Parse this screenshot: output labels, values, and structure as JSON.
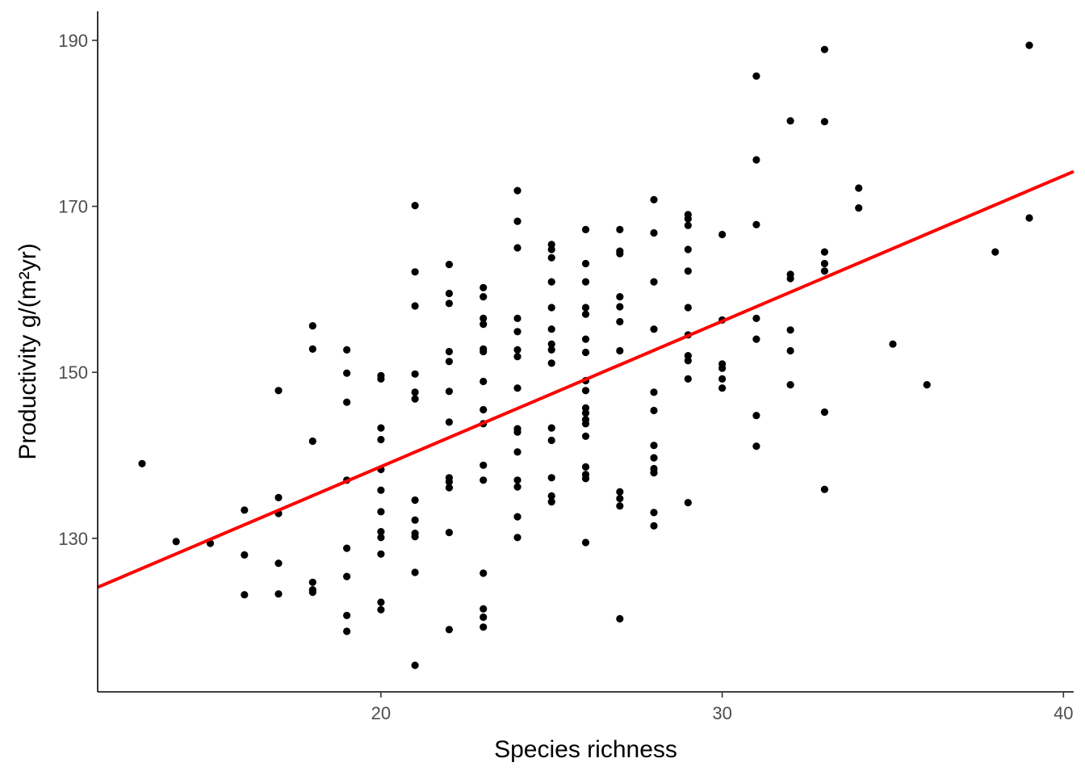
{
  "chart_data": {
    "type": "scatter",
    "title": "",
    "xlabel": "Species richness",
    "ylabel": "Productivity g/(m²yr)",
    "xlim": [
      11.7,
      40.3
    ],
    "ylim": [
      111.5,
      193.5
    ],
    "x_ticks": [
      20,
      30,
      40
    ],
    "y_ticks": [
      130,
      150,
      170,
      190
    ],
    "grid": false,
    "legend": "none",
    "point_color": "#000000",
    "fit_line": {
      "type": "linear",
      "color": "#ff0000",
      "x": [
        11.7,
        40.3
      ],
      "y": [
        124.1,
        174.2
      ]
    },
    "series": [
      {
        "points": [
          [
            13,
            139.0
          ],
          [
            14,
            129.6
          ],
          [
            15,
            129.4
          ],
          [
            16,
            133.4
          ],
          [
            16,
            128.0
          ],
          [
            16,
            123.2
          ],
          [
            17,
            147.8
          ],
          [
            17,
            134.9
          ],
          [
            17,
            133.0
          ],
          [
            17,
            127.0
          ],
          [
            17,
            123.3
          ],
          [
            18,
            155.6
          ],
          [
            18,
            152.8
          ],
          [
            18,
            141.7
          ],
          [
            18,
            124.7
          ],
          [
            18,
            123.8
          ],
          [
            18,
            123.5
          ],
          [
            19,
            152.7
          ],
          [
            19,
            149.9
          ],
          [
            19,
            146.4
          ],
          [
            19,
            137.0
          ],
          [
            19,
            128.8
          ],
          [
            19,
            125.4
          ],
          [
            19,
            120.7
          ],
          [
            19,
            118.8
          ],
          [
            20,
            149.6
          ],
          [
            20,
            149.2
          ],
          [
            20,
            143.3
          ],
          [
            20,
            141.9
          ],
          [
            20,
            138.3
          ],
          [
            20,
            135.8
          ],
          [
            20,
            133.2
          ],
          [
            20,
            130.8
          ],
          [
            20,
            130.1
          ],
          [
            20,
            128.1
          ],
          [
            20,
            122.3
          ],
          [
            20,
            121.4
          ],
          [
            21,
            170.1
          ],
          [
            21,
            162.1
          ],
          [
            21,
            158.0
          ],
          [
            21,
            149.8
          ],
          [
            21,
            147.6
          ],
          [
            21,
            146.8
          ],
          [
            21,
            134.6
          ],
          [
            21,
            132.2
          ],
          [
            21,
            130.6
          ],
          [
            21,
            130.2
          ],
          [
            21,
            125.9
          ],
          [
            21,
            114.7
          ],
          [
            22,
            163.0
          ],
          [
            22,
            159.5
          ],
          [
            22,
            158.3
          ],
          [
            22,
            152.5
          ],
          [
            22,
            151.3
          ],
          [
            22,
            147.7
          ],
          [
            22,
            144.0
          ],
          [
            22,
            137.3
          ],
          [
            22,
            136.8
          ],
          [
            22,
            136.1
          ],
          [
            22,
            130.7
          ],
          [
            22,
            119.0
          ],
          [
            23,
            160.2
          ],
          [
            23,
            159.1
          ],
          [
            23,
            156.5
          ],
          [
            23,
            155.8
          ],
          [
            23,
            152.8
          ],
          [
            23,
            152.5
          ],
          [
            23,
            148.9
          ],
          [
            23,
            145.5
          ],
          [
            23,
            143.8
          ],
          [
            23,
            138.8
          ],
          [
            23,
            137.0
          ],
          [
            23,
            125.8
          ],
          [
            23,
            121.5
          ],
          [
            23,
            120.5
          ],
          [
            23,
            119.3
          ],
          [
            24,
            171.9
          ],
          [
            24,
            168.2
          ],
          [
            24,
            165.0
          ],
          [
            24,
            156.5
          ],
          [
            24,
            154.9
          ],
          [
            24,
            152.7
          ],
          [
            24,
            151.9
          ],
          [
            24,
            148.1
          ],
          [
            24,
            143.2
          ],
          [
            24,
            142.8
          ],
          [
            24,
            140.4
          ],
          [
            24,
            137.0
          ],
          [
            24,
            136.2
          ],
          [
            24,
            132.6
          ],
          [
            24,
            130.1
          ],
          [
            25,
            165.4
          ],
          [
            25,
            164.8
          ],
          [
            25,
            163.8
          ],
          [
            25,
            160.9
          ],
          [
            25,
            157.8
          ],
          [
            25,
            155.2
          ],
          [
            25,
            153.4
          ],
          [
            25,
            152.7
          ],
          [
            25,
            151.1
          ],
          [
            25,
            143.3
          ],
          [
            25,
            141.8
          ],
          [
            25,
            137.3
          ],
          [
            25,
            135.1
          ],
          [
            25,
            134.4
          ],
          [
            26,
            167.2
          ],
          [
            26,
            163.1
          ],
          [
            26,
            160.9
          ],
          [
            26,
            157.8
          ],
          [
            26,
            157.0
          ],
          [
            26,
            154.0
          ],
          [
            26,
            152.4
          ],
          [
            26,
            149.0
          ],
          [
            26,
            147.8
          ],
          [
            26,
            145.7
          ],
          [
            26,
            145.1
          ],
          [
            26,
            144.3
          ],
          [
            26,
            143.8
          ],
          [
            26,
            142.3
          ],
          [
            26,
            138.6
          ],
          [
            26,
            137.7
          ],
          [
            26,
            137.2
          ],
          [
            26,
            129.5
          ],
          [
            27,
            167.2
          ],
          [
            27,
            164.6
          ],
          [
            27,
            164.3
          ],
          [
            27,
            159.1
          ],
          [
            27,
            157.9
          ],
          [
            27,
            156.1
          ],
          [
            27,
            152.6
          ],
          [
            27,
            135.6
          ],
          [
            27,
            134.8
          ],
          [
            27,
            133.9
          ],
          [
            27,
            120.3
          ],
          [
            28,
            170.8
          ],
          [
            28,
            166.8
          ],
          [
            28,
            160.9
          ],
          [
            28,
            155.2
          ],
          [
            28,
            147.6
          ],
          [
            28,
            145.4
          ],
          [
            28,
            141.2
          ],
          [
            28,
            139.7
          ],
          [
            28,
            138.4
          ],
          [
            28,
            137.9
          ],
          [
            28,
            133.1
          ],
          [
            28,
            131.5
          ],
          [
            29,
            169.0
          ],
          [
            29,
            168.5
          ],
          [
            29,
            167.7
          ],
          [
            29,
            164.8
          ],
          [
            29,
            162.2
          ],
          [
            29,
            157.8
          ],
          [
            29,
            154.5
          ],
          [
            29,
            152.0
          ],
          [
            29,
            151.4
          ],
          [
            29,
            149.2
          ],
          [
            29,
            134.3
          ],
          [
            30,
            166.6
          ],
          [
            30,
            156.3
          ],
          [
            30,
            151.0
          ],
          [
            30,
            150.5
          ],
          [
            30,
            149.2
          ],
          [
            30,
            148.1
          ],
          [
            31,
            185.7
          ],
          [
            31,
            175.6
          ],
          [
            31,
            167.8
          ],
          [
            31,
            156.5
          ],
          [
            31,
            154.0
          ],
          [
            31,
            144.8
          ],
          [
            31,
            141.1
          ],
          [
            32,
            180.3
          ],
          [
            32,
            161.8
          ],
          [
            32,
            161.3
          ],
          [
            32,
            155.1
          ],
          [
            32,
            152.6
          ],
          [
            32,
            148.5
          ],
          [
            33,
            188.9
          ],
          [
            33,
            180.2
          ],
          [
            33,
            164.5
          ],
          [
            33,
            163.1
          ],
          [
            33,
            162.2
          ],
          [
            33,
            145.2
          ],
          [
            33,
            135.9
          ],
          [
            34,
            172.2
          ],
          [
            34,
            169.8
          ],
          [
            35,
            153.4
          ],
          [
            36,
            148.5
          ],
          [
            38,
            164.5
          ],
          [
            39,
            189.4
          ],
          [
            39,
            168.6
          ]
        ]
      }
    ]
  }
}
